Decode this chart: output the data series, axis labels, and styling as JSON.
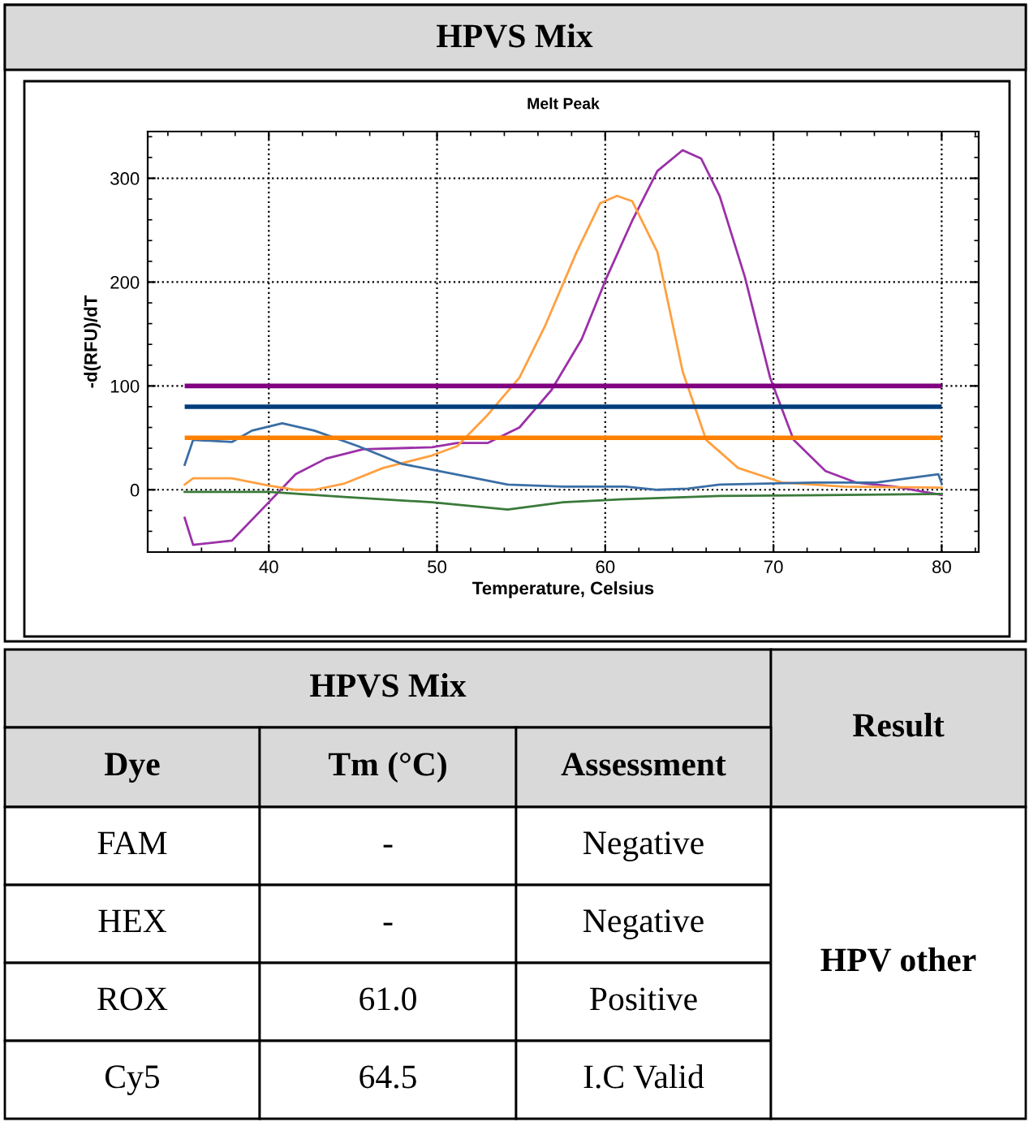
{
  "chart_data": [
    {
      "type": "line",
      "title": "HPVS Mix",
      "subtitle": "Melt Peak",
      "xlabel": "Temperature, Celsius",
      "ylabel": "-d(RFU)/dT",
      "xlim": [
        32.8,
        82.2
      ],
      "ylim": [
        -60,
        345
      ],
      "xticks": [
        40,
        50,
        60,
        70,
        80
      ],
      "yticks": [
        0,
        100,
        200,
        300
      ],
      "grid": true,
      "legend": false,
      "marker": "none",
      "line_style": "solid",
      "series": [
        {
          "color": "#9b30a8",
          "x": [
            35,
            35.5,
            37.8,
            40,
            41.6,
            43.4,
            45.6,
            49.7,
            51.2,
            53,
            54.9,
            56.8,
            58.6,
            60.1,
            61.6,
            63.1,
            64.6,
            65.7,
            66.8,
            68.3,
            69.8,
            71.2,
            73.1,
            74.9,
            77.2,
            80
          ],
          "values": [
            -27,
            -53,
            -49,
            -12,
            15,
            30,
            39,
            41,
            45,
            45,
            60,
            96,
            145,
            205,
            259,
            307,
            327,
            319,
            283,
            205,
            108,
            48,
            18,
            7,
            3,
            -5
          ]
        },
        {
          "color": "#ffa040",
          "x": [
            35,
            35.5,
            37.8,
            40,
            41.6,
            42.7,
            44.5,
            46.8,
            49.7,
            51.2,
            53,
            54.9,
            56.4,
            58.3,
            59.7,
            60.7,
            61.6,
            63.1,
            64.6,
            66,
            67.9,
            70.5,
            74.2,
            80
          ],
          "values": [
            5,
            11,
            11,
            4,
            0,
            0,
            6,
            21,
            33,
            42,
            72,
            108,
            157,
            229,
            276,
            283,
            278,
            229,
            114,
            48,
            21,
            7,
            3,
            2
          ]
        },
        {
          "color": "#3a6ea5",
          "x": [
            35,
            35.5,
            37.8,
            39,
            40.8,
            42.7,
            45.3,
            47.9,
            50.1,
            52,
            54.2,
            57.5,
            61.2,
            63.1,
            64.9,
            66.8,
            72.4,
            76.1,
            79.8,
            80
          ],
          "values": [
            24,
            48,
            46,
            57,
            64,
            57,
            42,
            25,
            18,
            12,
            5,
            3,
            3,
            0,
            1,
            5,
            7,
            7,
            15,
            6
          ]
        },
        {
          "color": "#3a7a3a",
          "x": [
            35,
            40,
            44.5,
            49.7,
            54.2,
            57.5,
            61.2,
            66.8,
            74.2,
            80
          ],
          "values": [
            -2,
            -2,
            -7,
            -12,
            -19,
            -12,
            -9,
            -6,
            -5,
            -4
          ]
        }
      ],
      "ref_lines": [
        {
          "axis": "y",
          "value": 100,
          "color": "#800080",
          "line_style": "solid"
        },
        {
          "axis": "y",
          "value": 80,
          "color": "#003d7a",
          "line_style": "solid"
        },
        {
          "axis": "y",
          "value": 50,
          "color": "#ff8000",
          "line_style": "solid"
        }
      ]
    },
    {
      "type": "other",
      "annotations": [
        "HPVS Mix",
        "Result",
        "Dye",
        "Tm (°C)",
        "Assessment",
        "FAM",
        "-",
        "Negative",
        "HEX",
        "-",
        "Negative",
        "ROX",
        "61.0",
        "Positive",
        "Cy5",
        "64.5",
        "I.C Valid",
        "HPV other"
      ]
    }
  ]
}
